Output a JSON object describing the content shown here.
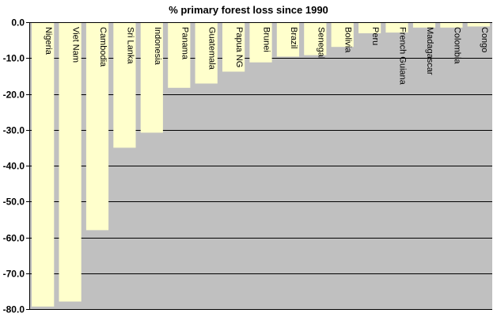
{
  "chart_data": {
    "type": "bar",
    "title": "% primary forest loss since 1990",
    "xlabel": "",
    "ylabel": "",
    "categories": [
      "Nigeria",
      "Viet Nam",
      "Cambodia",
      "Sri Lanka",
      "Indonesia",
      "Panama",
      "Guatemala",
      "Papua NG",
      "Brunei",
      "Brazil",
      "Senegal",
      "Bolivia",
      "Peru",
      "French Guiana",
      "Madagascar",
      "Colombia",
      "Congo"
    ],
    "values": [
      -79.3,
      -77.9,
      -58.0,
      -35.0,
      -30.8,
      -18.3,
      -17.1,
      -13.8,
      -11.2,
      -9.6,
      -9.2,
      -6.9,
      -3.1,
      -2.9,
      -1.5,
      -1.5,
      -1.2
    ],
    "ylim": [
      -80,
      0
    ],
    "yticks": [
      0,
      -10,
      -20,
      -30,
      -40,
      -50,
      -60,
      -70,
      -80
    ],
    "ytick_labels": [
      "0.0",
      "-10.0",
      "-20.0",
      "-30.0",
      "-40.0",
      "-50.0",
      "-60.0",
      "-70.0",
      "-80.0"
    ],
    "grid": true,
    "legend": "none",
    "colors": {
      "plot_background": "#c0c0c0",
      "bar_fill": "#ffffcc",
      "grid_line": "#000000",
      "axis_line": "#000000"
    }
  }
}
